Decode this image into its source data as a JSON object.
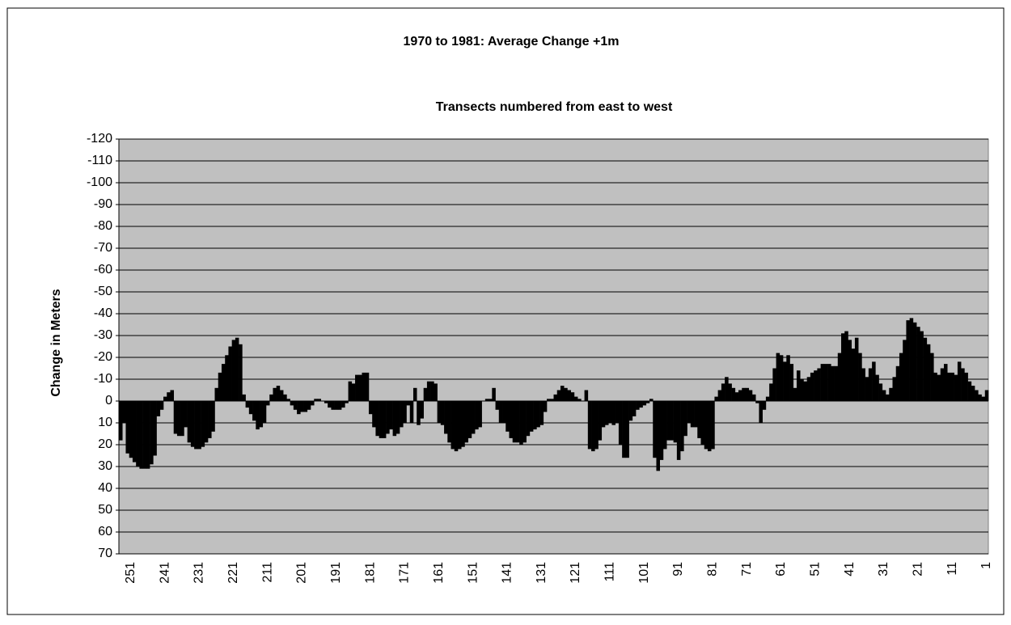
{
  "chart_data": {
    "type": "bar",
    "title": "1970 to 1981: Average Change +1m",
    "subtitle": "Transects numbered from east to west",
    "y_label": "Change in Meters",
    "categories": [
      null,
      null,
      null,
      "251",
      null,
      null,
      null,
      null,
      null,
      null,
      null,
      null,
      null,
      "241",
      null,
      null,
      null,
      null,
      null,
      null,
      null,
      null,
      null,
      "231",
      null,
      null,
      null,
      null,
      null,
      null,
      null,
      null,
      null,
      "221",
      null,
      null,
      null,
      null,
      null,
      null,
      null,
      null,
      null,
      "211",
      null,
      null,
      null,
      null,
      null,
      null,
      null,
      null,
      null,
      "201",
      null,
      null,
      null,
      null,
      null,
      null,
      null,
      null,
      null,
      "191",
      null,
      null,
      null,
      null,
      null,
      null,
      null,
      null,
      null,
      "181",
      null,
      null,
      null,
      null,
      null,
      null,
      null,
      null,
      null,
      "171",
      null,
      null,
      null,
      null,
      null,
      null,
      null,
      null,
      null,
      "161",
      null,
      null,
      null,
      null,
      null,
      null,
      null,
      null,
      null,
      "151",
      null,
      null,
      null,
      null,
      null,
      null,
      null,
      null,
      null,
      "141",
      null,
      null,
      null,
      null,
      null,
      null,
      null,
      null,
      null,
      "131",
      null,
      null,
      null,
      null,
      null,
      null,
      null,
      null,
      null,
      "121",
      null,
      null,
      null,
      null,
      null,
      null,
      null,
      null,
      null,
      "111",
      null,
      null,
      null,
      null,
      null,
      null,
      null,
      null,
      null,
      "101",
      null,
      null,
      null,
      null,
      null,
      null,
      null,
      null,
      null,
      "91",
      null,
      null,
      null,
      null,
      null,
      null,
      null,
      null,
      null,
      "81",
      null,
      null,
      null,
      null,
      null,
      null,
      null,
      null,
      null,
      "71",
      null,
      null,
      null,
      null,
      null,
      null,
      null,
      null,
      null,
      "61",
      null,
      null,
      null,
      null,
      null,
      null,
      null,
      null,
      null,
      "51",
      null,
      null,
      null,
      null,
      null,
      null,
      null,
      null,
      null,
      "41",
      null,
      null,
      null,
      null,
      null,
      null,
      null,
      null,
      null,
      "31",
      null,
      null,
      null,
      null,
      null,
      null,
      null,
      null,
      null,
      "21",
      null,
      null,
      null,
      null,
      null,
      null,
      null,
      null,
      null,
      "11",
      null,
      null,
      null,
      null,
      null,
      null,
      null,
      null,
      null,
      "1"
    ],
    "values": [
      18,
      10,
      24,
      26,
      28,
      30,
      31,
      31,
      31,
      29,
      25,
      7,
      4,
      -2,
      -4,
      -5,
      15,
      16,
      16,
      12,
      19,
      21,
      22,
      22,
      21,
      19,
      17,
      14,
      -6,
      -13,
      -17,
      -21,
      -25,
      -28,
      -29,
      -26,
      -3,
      3,
      6,
      9,
      13,
      12,
      10,
      2,
      -3,
      -6,
      -7,
      -5,
      -3,
      -1,
      2,
      4,
      6,
      5,
      5,
      4,
      2,
      -1,
      -1,
      0,
      1,
      3,
      4,
      4,
      4,
      3,
      1,
      -9,
      -8,
      -12,
      -12,
      -13,
      -13,
      6,
      12,
      16,
      17,
      17,
      15,
      13,
      16,
      15,
      12,
      10,
      2,
      10,
      -6,
      11,
      8,
      -6,
      -9,
      -9,
      -8,
      10,
      11,
      15,
      19,
      22,
      23,
      22,
      21,
      19,
      17,
      15,
      13,
      12,
      0,
      -1,
      -1,
      -6,
      4,
      10,
      10,
      14,
      17,
      19,
      19,
      20,
      19,
      16,
      14,
      13,
      12,
      11,
      5,
      -1,
      -1,
      -3,
      -5,
      -7,
      -6,
      -5,
      -4,
      -2,
      -1,
      0,
      -5,
      22,
      23,
      22,
      18,
      12,
      11,
      10,
      11,
      10,
      20,
      26,
      26,
      9,
      7,
      4,
      3,
      2,
      1,
      -1,
      26,
      32,
      27,
      22,
      18,
      18,
      19,
      27,
      23,
      16,
      10,
      12,
      12,
      17,
      20,
      22,
      23,
      22,
      -2,
      -5,
      -8,
      -11,
      -8,
      -6,
      -4,
      -5,
      -6,
      -6,
      -5,
      -3,
      1,
      10,
      4,
      -2,
      -8,
      -15,
      -22,
      -21,
      -18,
      -21,
      -17,
      -6,
      -14,
      -10,
      -9,
      -11,
      -13,
      -14,
      -15,
      -17,
      -17,
      -17,
      -16,
      -16,
      -22,
      -31,
      -32,
      -28,
      -24,
      -29,
      -22,
      -15,
      -11,
      -15,
      -18,
      -12,
      -8,
      -5,
      -3,
      -6,
      -11,
      -16,
      -22,
      -28,
      -37,
      -38,
      -36,
      -34,
      -32,
      -29,
      -26,
      -22,
      -13,
      -12,
      -15,
      -17,
      -13,
      -13,
      -12,
      -18,
      -15,
      -13,
      -9,
      -7,
      -5,
      -3,
      -2,
      -5
    ],
    "color": "#000000",
    "plot_background": "#c0c0c0",
    "ylim": [
      70,
      -120
    ],
    "yticks": [
      -120,
      -110,
      -100,
      -90,
      -80,
      -70,
      -60,
      -50,
      -40,
      -30,
      -20,
      -10,
      0,
      10,
      20,
      30,
      40,
      50,
      60,
      70
    ],
    "grid": true
  }
}
